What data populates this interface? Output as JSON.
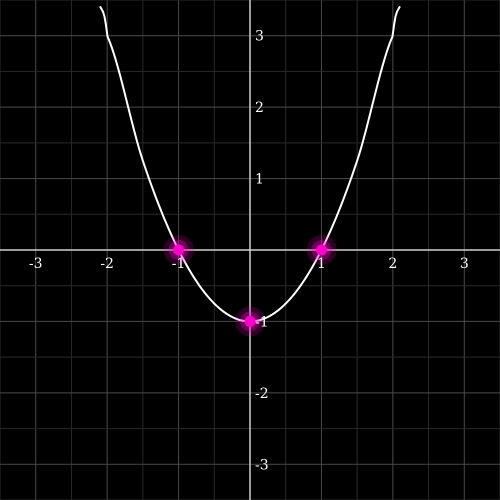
{
  "chart_data": {
    "type": "line",
    "title": "",
    "xlabel": "",
    "ylabel": "",
    "xlim": [
      -3.5,
      3.5
    ],
    "ylim": [
      -3.5,
      3.5
    ],
    "grid": true,
    "minor_grid_step": 0.5,
    "major_grid_step": 1,
    "x_ticks": [
      -3,
      -2,
      -1,
      1,
      2,
      3
    ],
    "x_tick_labels": [
      "-3",
      "-2",
      "-1",
      "1",
      "2",
      "3"
    ],
    "y_ticks": [
      3,
      2,
      1,
      -1,
      -2,
      -3
    ],
    "y_tick_labels": [
      "3",
      "2",
      "1",
      "-1",
      "-2",
      "-3"
    ],
    "series": [
      {
        "kind": "curve",
        "function": "y = x^2 - 1",
        "x": [
          -2.1,
          -2.0,
          -1.5,
          -1.0,
          -0.5,
          0.0,
          0.5,
          1.0,
          1.5,
          2.0,
          2.1
        ],
        "y": [
          3.41,
          3.0,
          1.25,
          0.0,
          -0.75,
          -1.0,
          -0.75,
          0.0,
          1.25,
          3.0,
          3.41
        ],
        "color": "#ffffff"
      },
      {
        "kind": "points",
        "x": [
          -1,
          0,
          1
        ],
        "y": [
          0,
          -1,
          0
        ],
        "color": "#ff00cc"
      }
    ],
    "colors": {
      "background": "#000000",
      "grid_minor": "#2a2a2a",
      "grid_major": "#4a4a4a",
      "axis": "#d0d0d0",
      "text": "#ffffff",
      "point": "#ff00cc",
      "point_glow": "#ff00cc"
    }
  }
}
